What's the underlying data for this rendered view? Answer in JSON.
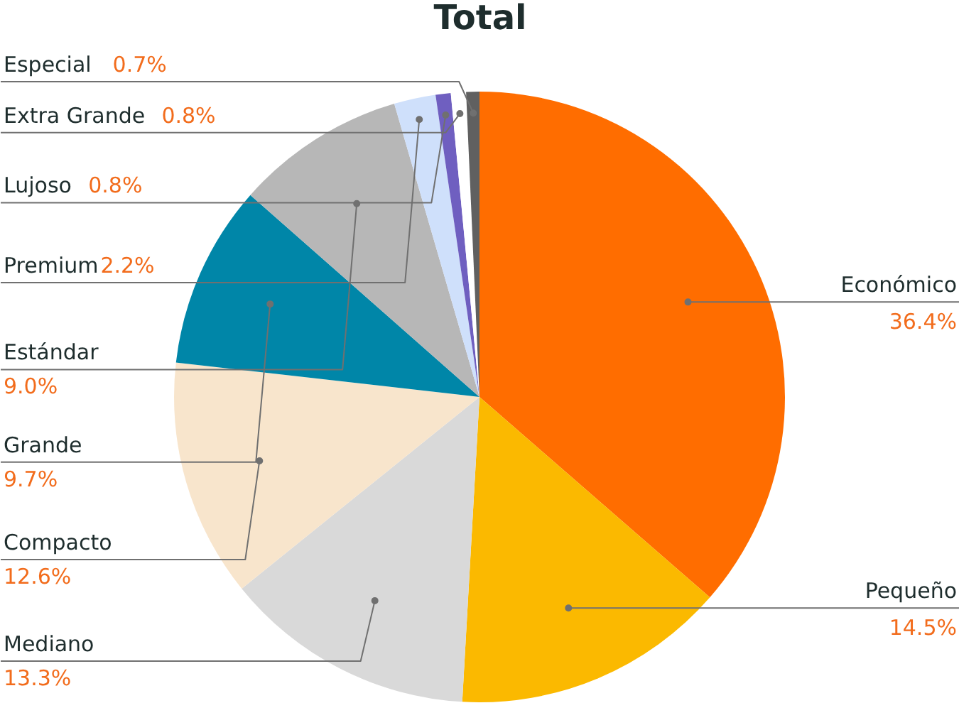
{
  "chart_data": {
    "type": "pie",
    "title": "Total",
    "categories": [
      "Económico",
      "Pequeño",
      "Mediano",
      "Compacto",
      "Grande",
      "Estándar",
      "Premium",
      "Lujoso",
      "Extra Grande",
      "Especial"
    ],
    "values": [
      36.4,
      14.5,
      13.3,
      12.6,
      9.7,
      9.0,
      2.2,
      0.8,
      0.8,
      0.7
    ],
    "colors": [
      "#ff6d00",
      "#fbb900",
      "#d9d9d9",
      "#f8e5cc",
      "#0086a8",
      "#b7b7b7",
      "#cfe0fb",
      "#6f5fc0",
      "#ffffff",
      "#606060"
    ],
    "value_labels": [
      "36.4%",
      "14.5%",
      "13.3%",
      "12.6%",
      "9.7%",
      "9.0%",
      "2.2%",
      "0.8%",
      "0.8%",
      "0.7%"
    ]
  }
}
